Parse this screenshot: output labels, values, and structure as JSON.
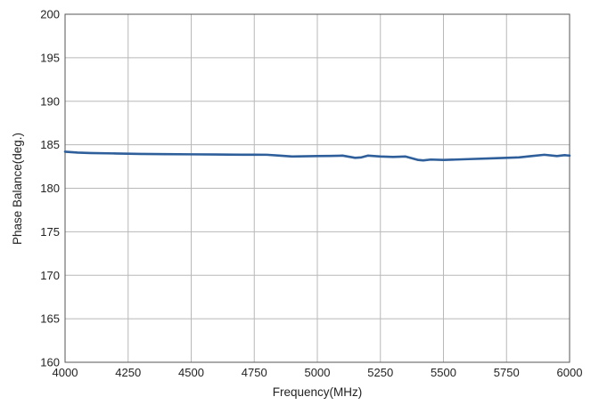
{
  "chart_data": {
    "type": "line",
    "title": "",
    "xlabel": "Frequency(MHz)",
    "ylabel": "Phase Balance(deg.)",
    "xlim": [
      4000,
      6000
    ],
    "ylim": [
      160,
      200
    ],
    "x_ticks": [
      4000,
      4250,
      4500,
      4750,
      5000,
      5250,
      5500,
      5750,
      6000
    ],
    "y_ticks": [
      160,
      165,
      170,
      175,
      180,
      185,
      190,
      195,
      200
    ],
    "grid": true,
    "legend": "none",
    "colors": {
      "line": "#2f5f9b",
      "grid": "#b8b8b8",
      "frame": "#555555",
      "text": "#222222"
    },
    "series": [
      {
        "x": [
          4000,
          4050,
          4100,
          4200,
          4300,
          4400,
          4500,
          4600,
          4700,
          4750,
          4800,
          4850,
          4900,
          5000,
          5050,
          5100,
          5150,
          5175,
          5200,
          5250,
          5300,
          5350,
          5400,
          5420,
          5450,
          5500,
          5600,
          5700,
          5800,
          5850,
          5900,
          5950,
          5980,
          6000
        ],
        "y": [
          184.2,
          184.1,
          184.05,
          184.0,
          183.95,
          183.92,
          183.9,
          183.88,
          183.86,
          183.86,
          183.85,
          183.75,
          183.65,
          183.7,
          183.72,
          183.75,
          183.5,
          183.55,
          183.75,
          183.65,
          183.6,
          183.65,
          183.25,
          183.2,
          183.3,
          183.25,
          183.35,
          183.45,
          183.55,
          183.7,
          183.85,
          183.7,
          183.8,
          183.75
        ]
      }
    ]
  }
}
